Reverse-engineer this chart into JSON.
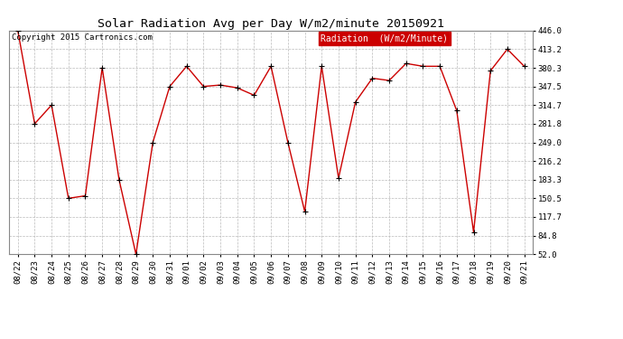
{
  "title": "Solar Radiation Avg per Day W/m2/minute 20150921",
  "copyright": "Copyright 2015 Cartronics.com",
  "legend_label": "Radiation  (W/m2/Minute)",
  "dates": [
    "08/22",
    "08/23",
    "08/24",
    "08/25",
    "08/26",
    "08/27",
    "08/28",
    "08/29",
    "08/30",
    "08/31",
    "09/01",
    "09/02",
    "09/03",
    "09/04",
    "09/05",
    "09/06",
    "09/07",
    "09/08",
    "09/09",
    "09/10",
    "09/11",
    "09/12",
    "09/13",
    "09/14",
    "09/15",
    "09/16",
    "09/17",
    "09/18",
    "09/19",
    "09/20",
    "09/21"
  ],
  "values": [
    446.0,
    281.8,
    314.7,
    150.5,
    155.0,
    380.3,
    183.3,
    52.0,
    249.0,
    347.5,
    383.0,
    347.5,
    350.0,
    345.0,
    332.0,
    383.0,
    249.0,
    127.0,
    383.0,
    186.0,
    320.0,
    362.0,
    358.0,
    388.0,
    383.0,
    383.0,
    305.0,
    91.0,
    375.0,
    413.2,
    383.0
  ],
  "ylim": [
    52.0,
    446.0
  ],
  "yticks": [
    52.0,
    84.8,
    117.7,
    150.5,
    183.3,
    216.2,
    249.0,
    281.8,
    314.7,
    347.5,
    380.3,
    413.2,
    446.0
  ],
  "yticklabels": [
    "52.0",
    "84.8",
    "117.7",
    "150.5",
    "183.3",
    "216.2",
    "249.0",
    "281.8",
    "314.7",
    "347.5",
    "380.3",
    "413.2",
    "446.0"
  ],
  "line_color": "#cc0000",
  "marker_color": "#000000",
  "bg_color": "#ffffff",
  "grid_color": "#bbbbbb",
  "title_fontsize": 9.5,
  "copyright_fontsize": 6.5,
  "tick_fontsize": 6.5,
  "legend_fontsize": 7,
  "legend_bg": "#cc0000",
  "legend_text_color": "#ffffff"
}
